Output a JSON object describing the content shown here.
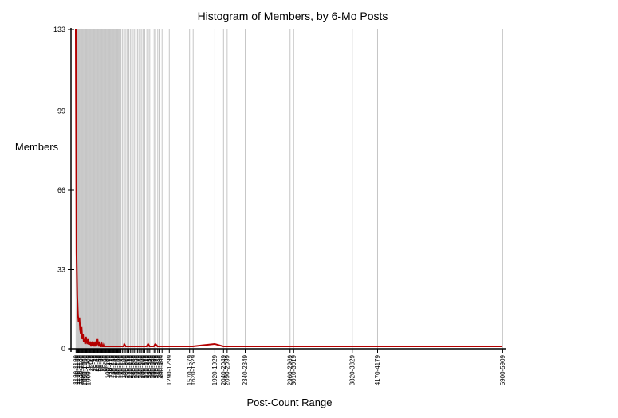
{
  "chart_data": {
    "type": "line",
    "title": "Histogram of Members, by 6-Mo Posts",
    "xlabel": "Post-Count Range",
    "ylabel": "Members",
    "ylim": [
      0,
      133
    ],
    "yticks": [
      0,
      33,
      66,
      99,
      133
    ],
    "xlim": [
      0,
      5910
    ],
    "grid": "vertical lines at each bin",
    "legend": "none",
    "line_color": "#b30000",
    "grid_color": "#c6c6c6",
    "bins_dense": [
      {
        "x": 0,
        "y": 133
      },
      {
        "x": 10,
        "y": 40
      },
      {
        "x": 20,
        "y": 22
      },
      {
        "x": 30,
        "y": 14
      },
      {
        "x": 40,
        "y": 11
      },
      {
        "x": 50,
        "y": 13
      },
      {
        "x": 60,
        "y": 8
      },
      {
        "x": 70,
        "y": 6
      },
      {
        "x": 80,
        "y": 9
      },
      {
        "x": 90,
        "y": 4
      },
      {
        "x": 100,
        "y": 6
      },
      {
        "x": 110,
        "y": 3
      },
      {
        "x": 120,
        "y": 4
      },
      {
        "x": 130,
        "y": 2
      },
      {
        "x": 140,
        "y": 5
      },
      {
        "x": 150,
        "y": 3
      },
      {
        "x": 160,
        "y": 2
      },
      {
        "x": 170,
        "y": 4
      },
      {
        "x": 180,
        "y": 2
      },
      {
        "x": 190,
        "y": 2
      },
      {
        "x": 200,
        "y": 3
      },
      {
        "x": 210,
        "y": 1
      },
      {
        "x": 220,
        "y": 2
      },
      {
        "x": 230,
        "y": 3
      },
      {
        "x": 240,
        "y": 1
      },
      {
        "x": 250,
        "y": 2
      },
      {
        "x": 260,
        "y": 1
      },
      {
        "x": 270,
        "y": 3
      },
      {
        "x": 280,
        "y": 1
      },
      {
        "x": 290,
        "y": 2
      },
      {
        "x": 300,
        "y": 4
      },
      {
        "x": 310,
        "y": 2
      },
      {
        "x": 320,
        "y": 1
      },
      {
        "x": 330,
        "y": 3
      },
      {
        "x": 340,
        "y": 1
      },
      {
        "x": 350,
        "y": 1
      },
      {
        "x": 360,
        "y": 2
      },
      {
        "x": 370,
        "y": 1
      },
      {
        "x": 380,
        "y": 1
      },
      {
        "x": 390,
        "y": 2
      },
      {
        "x": 400,
        "y": 1
      },
      {
        "x": 410,
        "y": 1
      },
      {
        "x": 420,
        "y": 1
      },
      {
        "x": 430,
        "y": 1
      },
      {
        "x": 440,
        "y": 1
      },
      {
        "x": 450,
        "y": 1
      },
      {
        "x": 460,
        "y": 1
      },
      {
        "x": 470,
        "y": 1
      },
      {
        "x": 480,
        "y": 1
      },
      {
        "x": 490,
        "y": 1
      },
      {
        "x": 500,
        "y": 1
      },
      {
        "x": 510,
        "y": 1
      },
      {
        "x": 520,
        "y": 1
      },
      {
        "x": 530,
        "y": 1
      },
      {
        "x": 540,
        "y": 1
      },
      {
        "x": 550,
        "y": 1
      },
      {
        "x": 560,
        "y": 1
      },
      {
        "x": 570,
        "y": 1
      },
      {
        "x": 580,
        "y": 1
      },
      {
        "x": 590,
        "y": 1
      },
      {
        "x": 600,
        "y": 1
      },
      {
        "x": 620,
        "y": 1
      },
      {
        "x": 640,
        "y": 1
      },
      {
        "x": 660,
        "y": 1
      },
      {
        "x": 670,
        "y": 2
      },
      {
        "x": 690,
        "y": 1
      },
      {
        "x": 710,
        "y": 1
      },
      {
        "x": 730,
        "y": 1
      },
      {
        "x": 750,
        "y": 1
      },
      {
        "x": 770,
        "y": 1
      },
      {
        "x": 790,
        "y": 1
      },
      {
        "x": 810,
        "y": 1
      },
      {
        "x": 830,
        "y": 1
      },
      {
        "x": 850,
        "y": 1
      },
      {
        "x": 870,
        "y": 1
      },
      {
        "x": 890,
        "y": 1
      },
      {
        "x": 910,
        "y": 1
      },
      {
        "x": 930,
        "y": 1
      },
      {
        "x": 950,
        "y": 1
      },
      {
        "x": 980,
        "y": 1
      },
      {
        "x": 1000,
        "y": 2
      },
      {
        "x": 1020,
        "y": 1
      },
      {
        "x": 1050,
        "y": 1
      },
      {
        "x": 1080,
        "y": 1
      },
      {
        "x": 1100,
        "y": 2
      },
      {
        "x": 1130,
        "y": 1
      },
      {
        "x": 1160,
        "y": 1
      },
      {
        "x": 1190,
        "y": 1
      }
    ],
    "bins_labeled": [
      {
        "label": "1290-1299",
        "x": 1290,
        "y": 1
      },
      {
        "label": "1570-1579",
        "x": 1570,
        "y": 1
      },
      {
        "label": "1620-1629",
        "x": 1620,
        "y": 1
      },
      {
        "label": "1920-1929",
        "x": 1920,
        "y": 2
      },
      {
        "label": "2040-2049",
        "x": 2040,
        "y": 1
      },
      {
        "label": "2090-2099",
        "x": 2090,
        "y": 1
      },
      {
        "label": "2340-2349",
        "x": 2340,
        "y": 1
      },
      {
        "label": "2960-2969",
        "x": 2960,
        "y": 1
      },
      {
        "label": "3010-3019",
        "x": 3010,
        "y": 1
      },
      {
        "label": "3820-3829",
        "x": 3820,
        "y": 1
      },
      {
        "label": "4170-4179",
        "x": 4170,
        "y": 1
      },
      {
        "label": "5900-5909",
        "x": 5900,
        "y": 1
      }
    ],
    "dense_tick_labels": [
      "1190-1199",
      "1160-1169",
      "1130-1139",
      "1100-1109",
      "1080-1089",
      "1050-1059",
      "1020-1029",
      "1000-1009",
      "0-9",
      "10-19",
      "20-29",
      "30-39",
      "40-49",
      "50-59",
      "60-69",
      "70-79",
      "80-89",
      "90-99",
      "100-109",
      "110-119",
      "120-129",
      "130-139",
      "140-149",
      "150-159",
      "160-169",
      "170-179",
      "180-189",
      "190-199",
      "200-209",
      "210-219",
      "220-229",
      "230-239",
      "240-249",
      "250-259",
      "260-269",
      "270-279",
      "280-289",
      "290-299",
      "300-309",
      "310-319",
      "320-329",
      "330-339",
      "340-349",
      "350-359",
      "360-369",
      "370-379",
      "380-389",
      "390-399",
      "400-409"
    ]
  }
}
